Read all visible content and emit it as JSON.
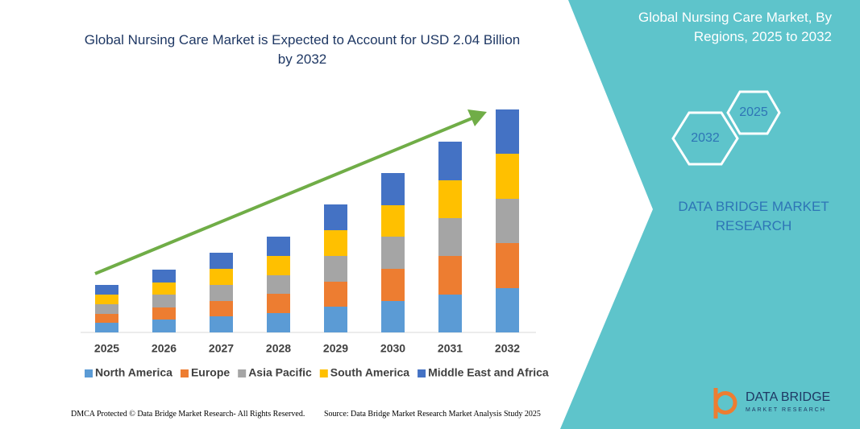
{
  "chart_data": {
    "type": "bar",
    "stacked": true,
    "title": "Global Nursing Care Market is Expected to Account for USD 2.04 Billion by 2032",
    "categories": [
      "2025",
      "2026",
      "2027",
      "2028",
      "2029",
      "2030",
      "2031",
      "2032"
    ],
    "series": [
      {
        "name": "North America",
        "color": "#5b9bd5",
        "values": [
          12,
          16,
          20,
          24,
          32,
          39,
          47,
          55
        ]
      },
      {
        "name": "Europe",
        "color": "#ed7d31",
        "values": [
          11,
          15,
          19,
          24,
          31,
          40,
          48,
          56
        ]
      },
      {
        "name": "Asia Pacific",
        "color": "#a5a5a5",
        "values": [
          12,
          16,
          20,
          23,
          32,
          40,
          47,
          55
        ]
      },
      {
        "name": "South America",
        "color": "#ffc000",
        "values": [
          12,
          15,
          20,
          24,
          32,
          39,
          47,
          56
        ]
      },
      {
        "name": "Middle East and Africa",
        "color": "#4472c4",
        "values": [
          12,
          16,
          20,
          24,
          32,
          40,
          48,
          55
        ]
      }
    ],
    "legend": "bottom",
    "arrow_color": "#70ad47"
  },
  "panel": {
    "title": "Global Nursing Care Market, By Regions, 2025 to 2032",
    "hexagons": [
      "2032",
      "2025"
    ],
    "brand": "DATA BRIDGE MARKET RESEARCH"
  },
  "footer": {
    "left": "DMCA Protected © Data Bridge Market Research- All Rights Reserved.",
    "right": "Source: Data Bridge Market Research Market Analysis Study 2025"
  },
  "logo": {
    "name": "DATA BRIDGE",
    "tagline": "MARKET RESEARCH"
  }
}
